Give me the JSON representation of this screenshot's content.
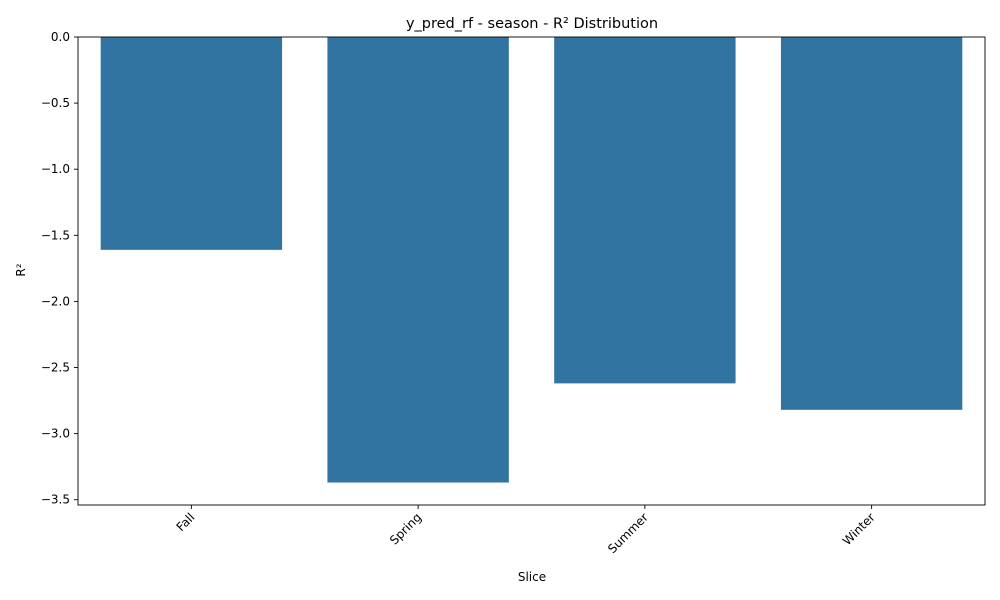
{
  "chart_data": {
    "type": "bar",
    "title": "y_pred_rf - season - R² Distribution",
    "xlabel": "Slice",
    "ylabel": "R²",
    "categories": [
      "Fall",
      "Spring",
      "Summer",
      "Winter"
    ],
    "values": [
      -1.61,
      -3.37,
      -2.62,
      -2.82
    ],
    "ylim": [
      -3.54,
      0.0
    ],
    "yticks": [
      0.0,
      -0.5,
      -1.0,
      -1.5,
      -2.0,
      -2.5,
      -3.0,
      -3.5
    ],
    "ytick_labels": [
      "0.0",
      "−0.5",
      "−1.0",
      "−1.5",
      "−2.0",
      "−2.5",
      "−3.0",
      "−3.5"
    ],
    "bar_color": "#3274a1",
    "grid": false,
    "xtick_rotation_deg": 45
  }
}
